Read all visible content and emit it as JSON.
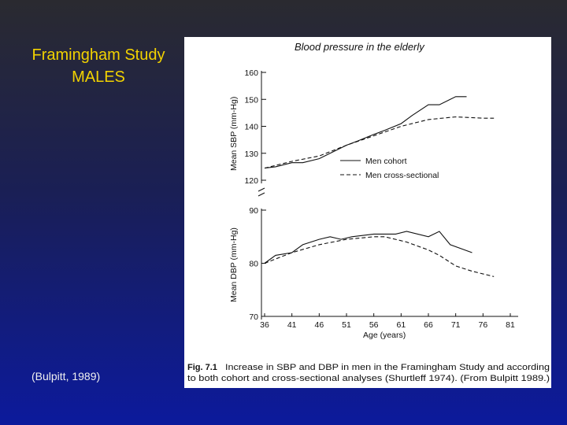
{
  "slide": {
    "title_line1": "Framingham Study",
    "title_line2": "MALES",
    "citation": "(Bulpitt, 1989)"
  },
  "colors": {
    "title": "#f2d200",
    "citation": "#f0f0f0",
    "ink": "#111111"
  },
  "chart_data": [
    {
      "type": "line",
      "title": "Blood pressure in the elderly",
      "ylabel": "Mean SBP (mm-Hg)",
      "ylim": [
        120,
        160
      ],
      "yticks": [
        120,
        130,
        140,
        150,
        160
      ],
      "x": [
        36,
        41,
        46,
        51,
        56,
        61,
        66,
        71,
        76,
        81
      ],
      "xlim": [
        36,
        81
      ],
      "legend": [
        "Men cohort",
        "Men cross-sectional"
      ],
      "legend_position": "lower-right",
      "series": [
        {
          "name": "Men cohort",
          "style": "solid",
          "points": [
            [
              36,
              124.5
            ],
            [
              38,
              125
            ],
            [
              41,
              126.5
            ],
            [
              43,
              126.5
            ],
            [
              46,
              128
            ],
            [
              48,
              130
            ],
            [
              51,
              133
            ],
            [
              53,
              134.5
            ],
            [
              56,
              137
            ],
            [
              58,
              138.5
            ],
            [
              61,
              141
            ],
            [
              63,
              144
            ],
            [
              66,
              148
            ],
            [
              68,
              148
            ],
            [
              71,
              151
            ],
            [
              73,
              151
            ]
          ]
        },
        {
          "name": "Men cross-sectional",
          "style": "dashed",
          "points": [
            [
              36,
              124.5
            ],
            [
              41,
              127
            ],
            [
              46,
              129
            ],
            [
              51,
              133
            ],
            [
              56,
              136.5
            ],
            [
              61,
              140
            ],
            [
              66,
              142.5
            ],
            [
              71,
              143.5
            ],
            [
              76,
              143
            ],
            [
              78,
              143
            ]
          ]
        }
      ]
    },
    {
      "type": "line",
      "ylabel": "Mean DBP (mm-Hg)",
      "xlabel": "Age (years)",
      "ylim": [
        70,
        90
      ],
      "yticks": [
        70,
        80,
        90
      ],
      "x": [
        36,
        41,
        46,
        51,
        56,
        61,
        66,
        71,
        76,
        81
      ],
      "xticks": [
        36,
        41,
        46,
        51,
        56,
        61,
        66,
        71,
        76,
        81
      ],
      "xlim": [
        36,
        81
      ],
      "series": [
        {
          "name": "Men cohort",
          "style": "solid",
          "points": [
            [
              36,
              80
            ],
            [
              38,
              81.5
            ],
            [
              41,
              82
            ],
            [
              43,
              83.5
            ],
            [
              46,
              84.5
            ],
            [
              48,
              85
            ],
            [
              50,
              84.5
            ],
            [
              52,
              85
            ],
            [
              56,
              85.5
            ],
            [
              60,
              85.5
            ],
            [
              62,
              86
            ],
            [
              66,
              85
            ],
            [
              68,
              86
            ],
            [
              70,
              83.5
            ],
            [
              74,
              82
            ]
          ]
        },
        {
          "name": "Men cross-sectional",
          "style": "dashed",
          "points": [
            [
              36,
              80
            ],
            [
              41,
              82
            ],
            [
              46,
              83.5
            ],
            [
              51,
              84.5
            ],
            [
              56,
              85
            ],
            [
              58,
              85
            ],
            [
              62,
              84
            ],
            [
              66,
              82.5
            ],
            [
              68,
              81.5
            ],
            [
              71,
              79.5
            ],
            [
              74,
              78.5
            ],
            [
              78,
              77.5
            ]
          ]
        }
      ]
    }
  ],
  "caption": {
    "label": "Fig. 7.1",
    "line1": "Increase in SBP and DBP in men in the Framingham Study and according",
    "line2": "to both cohort and cross-sectional analyses (Shurtleff 1974). (From Bulpitt 1989.)"
  }
}
